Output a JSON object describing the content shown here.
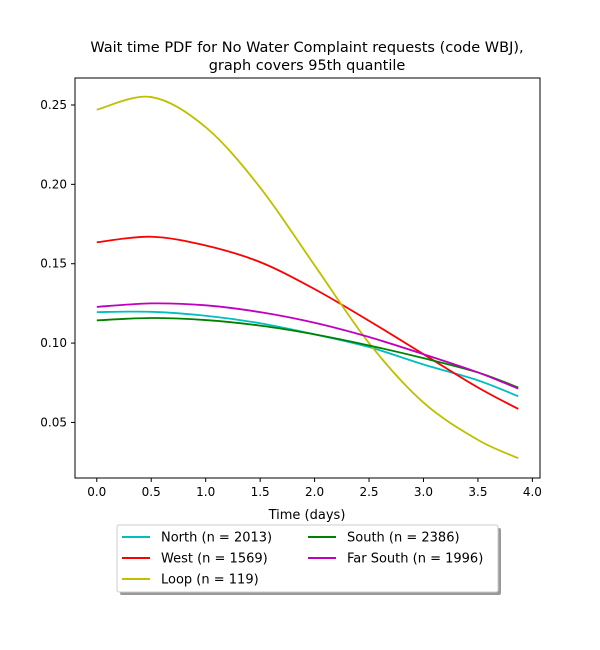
{
  "chart_data": {
    "type": "line",
    "title": "Wait time PDF for No Water Complaint  requests (code WBJ),",
    "subtitle": "graph covers 95th quantile",
    "xlabel": "Time (days)",
    "ylabel": "",
    "xlim": [
      -0.2,
      4.07
    ],
    "ylim": [
      0.015,
      0.267
    ],
    "xticks": [
      0.0,
      0.5,
      1.0,
      1.5,
      2.0,
      2.5,
      3.0,
      3.5,
      4.0
    ],
    "xtick_labels": [
      "0.0",
      "0.5",
      "1.0",
      "1.5",
      "2.0",
      "2.5",
      "3.0",
      "3.5",
      "4.0"
    ],
    "yticks": [
      0.05,
      0.1,
      0.15,
      0.2,
      0.25
    ],
    "ytick_labels": [
      "0.05",
      "0.10",
      "0.15",
      "0.20",
      "0.25"
    ],
    "grid": false,
    "legend": {
      "placement": "below plot, two columns, with shadow"
    },
    "x": [
      0.0,
      0.5,
      1.0,
      1.5,
      2.0,
      2.5,
      3.0,
      3.5,
      3.87
    ],
    "series": [
      {
        "name": "North (n = 2013)",
        "color": "#00bfbf",
        "values": [
          0.1195,
          0.1197,
          0.1172,
          0.1125,
          0.1055,
          0.0975,
          0.0865,
          0.0765,
          0.0665
        ]
      },
      {
        "name": "West (n = 1569)",
        "color": "#ff0000",
        "values": [
          0.1635,
          0.167,
          0.1615,
          0.151,
          0.134,
          0.114,
          0.093,
          0.072,
          0.0585
        ]
      },
      {
        "name": "Loop (n = 119)",
        "color": "#bfbf00",
        "values": [
          0.247,
          0.255,
          0.236,
          0.198,
          0.149,
          0.1,
          0.0625,
          0.039,
          0.0275
        ]
      },
      {
        "name": "South (n = 2386)",
        "color": "#008000",
        "values": [
          0.1143,
          0.1158,
          0.1145,
          0.111,
          0.1055,
          0.0985,
          0.0905,
          0.0815,
          0.072
        ]
      },
      {
        "name": "Far South (n = 1996)",
        "color": "#bf00bf",
        "values": [
          0.1228,
          0.125,
          0.1238,
          0.1195,
          0.1128,
          0.1038,
          0.093,
          0.0815,
          0.0713
        ]
      }
    ]
  }
}
